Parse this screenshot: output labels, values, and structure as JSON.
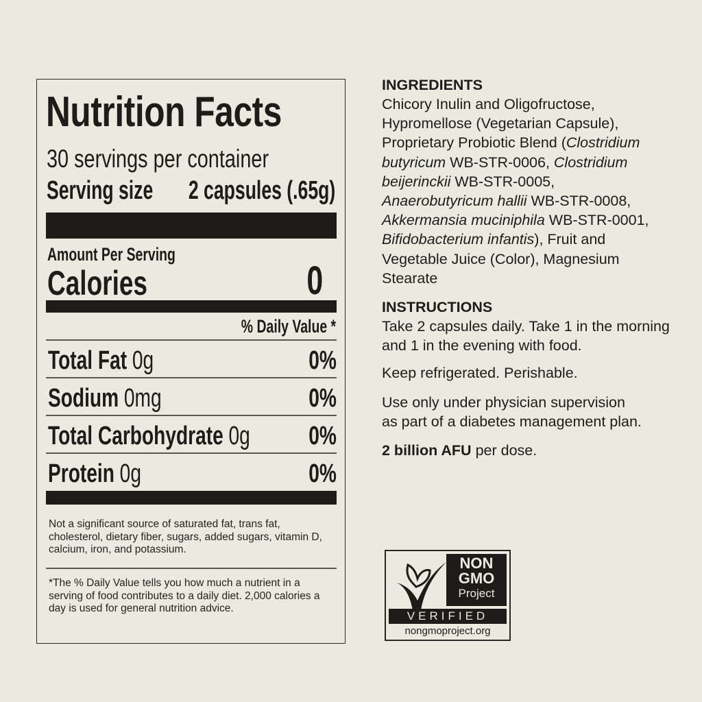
{
  "nutrition": {
    "title": "Nutrition Facts",
    "servings": "30 servings per container",
    "serving_size_label": "Serving size",
    "serving_size_value": "2 capsules (.65g)",
    "amount_per_serving": "Amount Per Serving",
    "calories_label": "Calories",
    "calories_value": "0",
    "daily_value_header": "% Daily Value *",
    "rows": [
      {
        "name": "Total Fat",
        "amount": "0g",
        "dv": "0%"
      },
      {
        "name": "Sodium",
        "amount": "0mg",
        "dv": "0%"
      },
      {
        "name": "Total Carbohydrate",
        "amount": "0g",
        "dv": "0%"
      },
      {
        "name": "Protein",
        "amount": "0g",
        "dv": "0%"
      }
    ],
    "not_significant": "Not a significant source of saturated fat, trans fat, cholesterol, dietary fiber, sugars, added sugars, vitamin D, calcium, iron, and potassium.",
    "footnote": "*The % Daily Value tells you how much a nutrient in a serving of food contributes to a daily diet. 2,000 calories a day is used for general nutrition advice."
  },
  "ingredients": {
    "heading": "INGREDIENTS",
    "segments": [
      {
        "text": "Chicory Inulin and Oligofructose, Hypromellose (Vegetarian Capsule), Proprietary Probiotic Blend (",
        "italic": false
      },
      {
        "text": "Clostridium butyricum",
        "italic": true
      },
      {
        "text": " WB-STR-0006, ",
        "italic": false
      },
      {
        "text": "Clostridium beijerinckii",
        "italic": true
      },
      {
        "text": " WB-STR-0005, ",
        "italic": false
      },
      {
        "text": "Anaerobutyricum hallii",
        "italic": true
      },
      {
        "text": " WB-STR-0008, ",
        "italic": false
      },
      {
        "text": "Akkermansia muciniphila",
        "italic": true
      },
      {
        "text": " WB-STR-0001, ",
        "italic": false
      },
      {
        "text": "Bifidobacterium infantis",
        "italic": true
      },
      {
        "text": "), Fruit and Vegetable Juice (Color), Magnesium Stearate",
        "italic": false
      }
    ]
  },
  "instructions": {
    "heading": "INSTRUCTIONS",
    "p1": "Take 2 capsules daily. Take 1 in the morning and 1 in the evening with food.",
    "p2": "Keep refrigerated. Perishable.",
    "p3": "Use only under physician supervision as part of a diabetes management plan.",
    "dose_bold": "2 billion AFU",
    "dose_rest": " per dose."
  },
  "logo": {
    "line1": "NON",
    "line2": "GMO",
    "line3": "Project",
    "verified": "VERIFIED",
    "url": "nongmoproject.org"
  }
}
